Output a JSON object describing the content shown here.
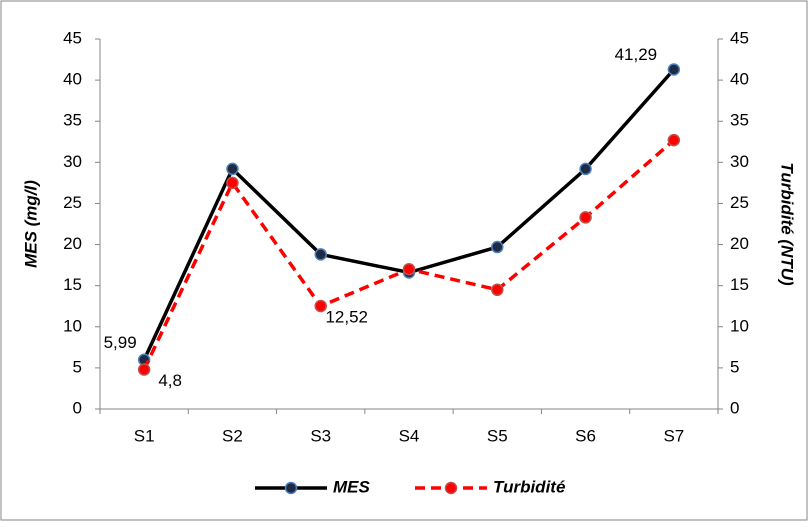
{
  "chart_data": {
    "type": "line",
    "categories": [
      "S1",
      "S2",
      "S3",
      "S4",
      "S5",
      "S6",
      "S7"
    ],
    "series": [
      {
        "name": "MES",
        "color": "#000000",
        "line_style": "solid",
        "axis": "y",
        "values": [
          5.99,
          29.2,
          18.8,
          16.6,
          19.7,
          29.2,
          41.29
        ],
        "value_labels": [
          "5,99",
          null,
          null,
          null,
          null,
          null,
          "41,29"
        ]
      },
      {
        "name": "Turbidité",
        "color": "#ff0000",
        "line_style": "dashed",
        "axis": "y2",
        "values": [
          4.8,
          27.5,
          12.52,
          17.0,
          14.5,
          23.3,
          32.7
        ],
        "value_labels": [
          "4,8",
          null,
          "12,52",
          null,
          null,
          null,
          null
        ]
      }
    ],
    "ylabel": "MES (mg/l)",
    "y2label": "Turbidité (NTU)",
    "ylim": [
      0,
      45
    ],
    "yticks": [
      0,
      5,
      10,
      15,
      20,
      25,
      30,
      35,
      40,
      45
    ],
    "y2lim": [
      0,
      45
    ],
    "y2ticks": [
      0,
      5,
      10,
      15,
      20,
      25,
      30,
      35,
      40,
      45
    ],
    "grid": false,
    "legend": "bottom"
  }
}
